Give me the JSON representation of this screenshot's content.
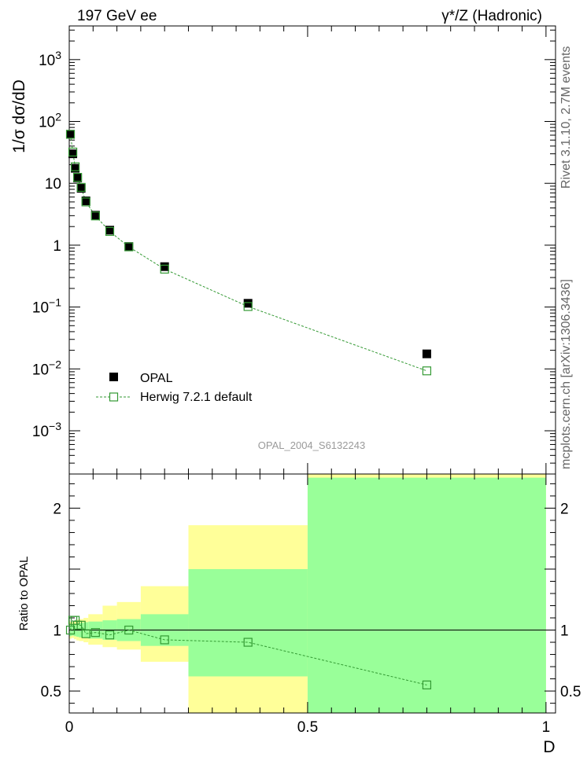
{
  "header": {
    "left_title": "197 GeV ee",
    "right_title": "γ*/Z (Hadronic)"
  },
  "side_labels": {
    "rivet": "Rivet 3.1.10, 2.7M events",
    "mcplots": "mcplots.cern.ch [arXiv:1306.3436]"
  },
  "watermark": "OPAL_2004_S6132243",
  "colors": {
    "data_marker": "#000000",
    "mc_line": "#339933",
    "band_inner": "#99ff99",
    "band_outer": "#ffff99"
  },
  "chart_data": [
    {
      "type": "scatter",
      "ylabel": "1/σ dσ/dD",
      "yscale": "log",
      "ylim": [
        0.0002,
        3500
      ],
      "xlim": [
        0,
        1.02
      ],
      "y_ticks": [
        {
          "value": 0.001,
          "base": "10",
          "exp": "−3"
        },
        {
          "value": 0.01,
          "base": "10",
          "exp": "−2"
        },
        {
          "value": 0.1,
          "base": "10",
          "exp": "−1"
        },
        {
          "value": 1,
          "base": "1",
          "exp": ""
        },
        {
          "value": 10,
          "base": "10",
          "exp": ""
        },
        {
          "value": 100,
          "base": "10",
          "exp": "2"
        },
        {
          "value": 1000,
          "base": "10",
          "exp": "3"
        }
      ],
      "legend": {
        "position": "bottom-left",
        "entries": [
          "OPAL",
          "Herwig 7.2.1 default"
        ]
      },
      "series": [
        {
          "name": "OPAL",
          "marker": "filled-square",
          "x": [
            0.0025,
            0.0075,
            0.0125,
            0.0175,
            0.025,
            0.035,
            0.055,
            0.085,
            0.125,
            0.2,
            0.375,
            0.75
          ],
          "y": [
            62,
            30,
            17.5,
            12.2,
            8.3,
            5.2,
            3.05,
            1.75,
            0.95,
            0.45,
            0.115,
            0.0175
          ]
        },
        {
          "name": "Herwig 7.2.1 default",
          "marker": "open-square",
          "line": "dashed",
          "x": [
            0.0025,
            0.0075,
            0.0125,
            0.0175,
            0.025,
            0.035,
            0.055,
            0.085,
            0.125,
            0.2,
            0.375,
            0.75
          ],
          "y": [
            62,
            32,
            18.5,
            12.5,
            8.6,
            5.0,
            2.97,
            1.67,
            0.94,
            0.41,
            0.102,
            0.0093
          ]
        }
      ]
    },
    {
      "type": "scatter",
      "ylabel": "Ratio to OPAL",
      "xlabel": "D",
      "xlim": [
        0,
        1.02
      ],
      "ylim": [
        0.32,
        2.28
      ],
      "x_ticks": [
        {
          "value": 0,
          "label": "0"
        },
        {
          "value": 0.5,
          "label": "0.5"
        },
        {
          "value": 1,
          "label": "1"
        }
      ],
      "y_ticks": [
        {
          "value": 0.5,
          "label": "0.5"
        },
        {
          "value": 1,
          "label": "1"
        },
        {
          "value": 2,
          "label": "2"
        }
      ],
      "reference_line": 1,
      "bands": [
        {
          "x0": 0.0,
          "x1": 0.005,
          "inner": [
            0.95,
            1.05
          ],
          "outer": [
            0.93,
            1.07
          ]
        },
        {
          "x0": 0.005,
          "x1": 0.01,
          "inner": [
            0.955,
            1.045
          ],
          "outer": [
            0.935,
            1.065
          ]
        },
        {
          "x0": 0.01,
          "x1": 0.015,
          "inner": [
            0.95,
            1.05
          ],
          "outer": [
            0.925,
            1.075
          ]
        },
        {
          "x0": 0.015,
          "x1": 0.02,
          "inner": [
            0.945,
            1.055
          ],
          "outer": [
            0.915,
            1.085
          ]
        },
        {
          "x0": 0.02,
          "x1": 0.03,
          "inner": [
            0.94,
            1.06
          ],
          "outer": [
            0.91,
            1.09
          ]
        },
        {
          "x0": 0.03,
          "x1": 0.04,
          "inner": [
            0.935,
            1.065
          ],
          "outer": [
            0.9,
            1.1
          ]
        },
        {
          "x0": 0.04,
          "x1": 0.07,
          "inner": [
            0.93,
            1.07
          ],
          "outer": [
            0.88,
            1.13
          ]
        },
        {
          "x0": 0.07,
          "x1": 0.1,
          "inner": [
            0.92,
            1.08
          ],
          "outer": [
            0.86,
            1.2
          ]
        },
        {
          "x0": 0.1,
          "x1": 0.15,
          "inner": [
            0.91,
            1.09
          ],
          "outer": [
            0.84,
            1.23
          ]
        },
        {
          "x0": 0.15,
          "x1": 0.25,
          "inner": [
            0.87,
            1.13
          ],
          "outer": [
            0.74,
            1.36
          ]
        },
        {
          "x0": 0.25,
          "x1": 0.5,
          "inner": [
            0.62,
            1.5
          ],
          "outer": [
            0.32,
            1.86
          ]
        },
        {
          "x0": 0.5,
          "x1": 1.0,
          "inner": [
            0.32,
            2.25
          ],
          "outer": [
            0.32,
            2.28
          ]
        }
      ],
      "series": [
        {
          "name": "Herwig 7.2.1 default",
          "marker": "open-square",
          "line": "dashed",
          "x": [
            0.0025,
            0.0075,
            0.0125,
            0.0175,
            0.025,
            0.035,
            0.055,
            0.085,
            0.125,
            0.2,
            0.375,
            0.75
          ],
          "y": [
            1.0,
            1.08,
            1.08,
            1.04,
            1.04,
            0.97,
            0.98,
            0.96,
            1.0,
            0.92,
            0.9,
            0.55
          ]
        }
      ]
    }
  ]
}
